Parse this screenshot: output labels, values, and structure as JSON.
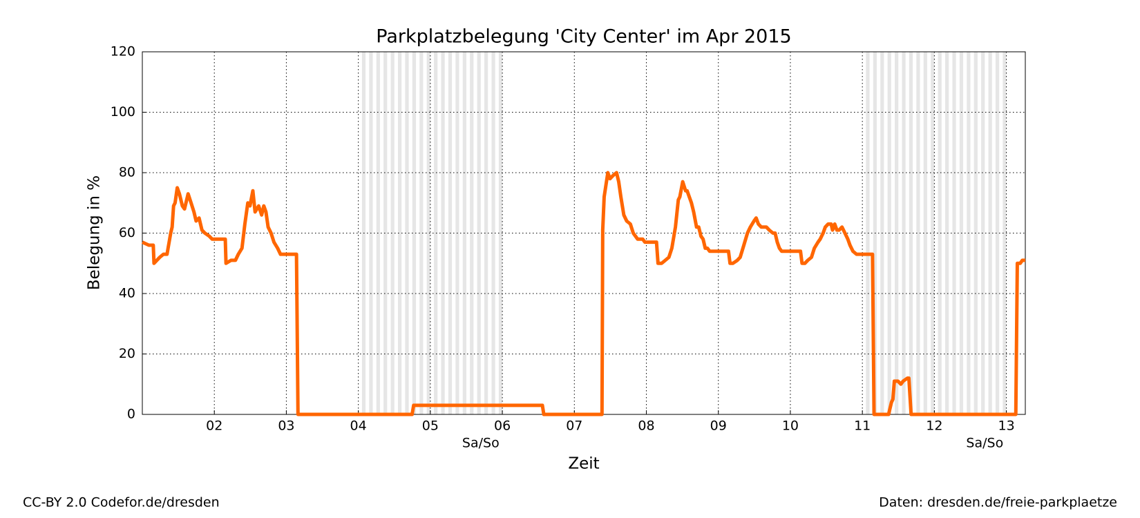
{
  "chart_data": {
    "type": "line",
    "title": "Parkplatzbelegung 'City  Center' im Apr 2015",
    "x_label": "Zeit",
    "y_label": "Belegung in %",
    "xlim": [
      1,
      13.263
    ],
    "ylim": [
      0,
      120
    ],
    "xticks": [
      {
        "value": 2,
        "label": "02"
      },
      {
        "value": 3,
        "label": "03"
      },
      {
        "value": 4,
        "label": "04"
      },
      {
        "value": 5,
        "label": "05"
      },
      {
        "value": 6,
        "label": "06"
      },
      {
        "value": 7,
        "label": "07"
      },
      {
        "value": 8,
        "label": "08"
      },
      {
        "value": 9,
        "label": "09"
      },
      {
        "value": 10,
        "label": "10"
      },
      {
        "value": 11,
        "label": "11"
      },
      {
        "value": 12,
        "label": "12"
      },
      {
        "value": 13,
        "label": "13"
      }
    ],
    "yticks": [
      0,
      20,
      40,
      60,
      80,
      100,
      120
    ],
    "grid": true,
    "weekends": [
      {
        "start": 4,
        "end": 6,
        "label": "Sa/So"
      },
      {
        "start": 11,
        "end": 13,
        "label": "Sa/So"
      }
    ],
    "weekend_color": "#e6e6e6",
    "series": [
      {
        "color": "#ff6600",
        "x": [
          1.0,
          1.091,
          1.152,
          1.162,
          1.242,
          1.293,
          1.343,
          1.394,
          1.414,
          1.434,
          1.455,
          1.485,
          1.515,
          1.556,
          1.586,
          1.636,
          1.677,
          1.717,
          1.747,
          1.788,
          1.828,
          1.869,
          1.929,
          1.97,
          2.152,
          2.162,
          2.232,
          2.293,
          2.333,
          2.384,
          2.424,
          2.465,
          2.495,
          2.535,
          2.566,
          2.616,
          2.657,
          2.687,
          2.717,
          2.747,
          2.788,
          2.828,
          2.879,
          2.899,
          2.919,
          3.141,
          3.162,
          4.747,
          4.768,
          6.556,
          6.576,
          7.384,
          7.394,
          7.414,
          7.465,
          7.495,
          7.535,
          7.586,
          7.616,
          7.646,
          7.687,
          7.727,
          7.778,
          7.818,
          7.879,
          7.949,
          7.98,
          8.141,
          8.162,
          8.212,
          8.263,
          8.313,
          8.354,
          8.404,
          8.444,
          8.465,
          8.505,
          8.545,
          8.566,
          8.596,
          8.626,
          8.657,
          8.697,
          8.727,
          8.758,
          8.788,
          8.818,
          8.848,
          8.879,
          9.141,
          9.162,
          9.202,
          9.263,
          9.303,
          9.354,
          9.404,
          9.444,
          9.495,
          9.525,
          9.556,
          9.596,
          9.667,
          9.707,
          9.758,
          9.788,
          9.818,
          9.848,
          9.879,
          10.141,
          10.162,
          10.202,
          10.242,
          10.293,
          10.333,
          10.384,
          10.414,
          10.455,
          10.485,
          10.525,
          10.566,
          10.586,
          10.616,
          10.646,
          10.677,
          10.717,
          10.758,
          10.798,
          10.828,
          10.869,
          10.919,
          11.141,
          11.162,
          11.364,
          11.404,
          11.424,
          11.444,
          11.495,
          11.535,
          11.566,
          11.626,
          11.646,
          11.677,
          13.131,
          13.152,
          13.192,
          13.222,
          13.263
        ],
        "values": [
          57,
          56,
          56,
          50,
          52,
          53,
          53,
          60,
          62,
          69,
          70,
          75,
          73,
          69,
          68,
          73,
          70,
          67,
          64,
          65,
          61,
          60,
          59,
          58,
          58,
          50,
          51,
          51,
          53,
          55,
          63,
          70,
          69,
          74,
          67,
          69,
          66,
          69,
          67,
          62,
          60,
          57,
          55,
          54,
          53,
          53,
          0,
          0,
          3,
          3,
          0,
          0,
          61,
          72,
          80,
          78,
          79,
          80,
          77,
          72,
          66,
          64,
          63,
          60,
          58,
          58,
          57,
          57,
          50,
          50,
          51,
          52,
          55,
          62,
          71,
          72,
          77,
          74,
          74,
          72,
          70,
          67,
          62,
          62,
          59,
          58,
          55,
          55,
          54,
          54,
          50,
          50,
          51,
          52,
          56,
          60,
          62,
          64,
          65,
          63,
          62,
          62,
          61,
          60,
          60,
          57,
          55,
          54,
          54,
          50,
          50,
          51,
          52,
          55,
          57,
          58,
          60,
          62,
          63,
          63,
          61,
          63,
          61,
          61,
          62,
          60,
          58,
          56,
          54,
          53,
          53,
          0,
          0,
          4,
          5,
          11,
          11,
          10,
          11,
          12,
          12,
          0,
          0,
          50,
          50,
          51,
          51
        ]
      }
    ]
  },
  "footer": {
    "left": "CC-BY 2.0 Codefor.de/dresden",
    "right": "Daten: dresden.de/freie-parkplaetze"
  }
}
